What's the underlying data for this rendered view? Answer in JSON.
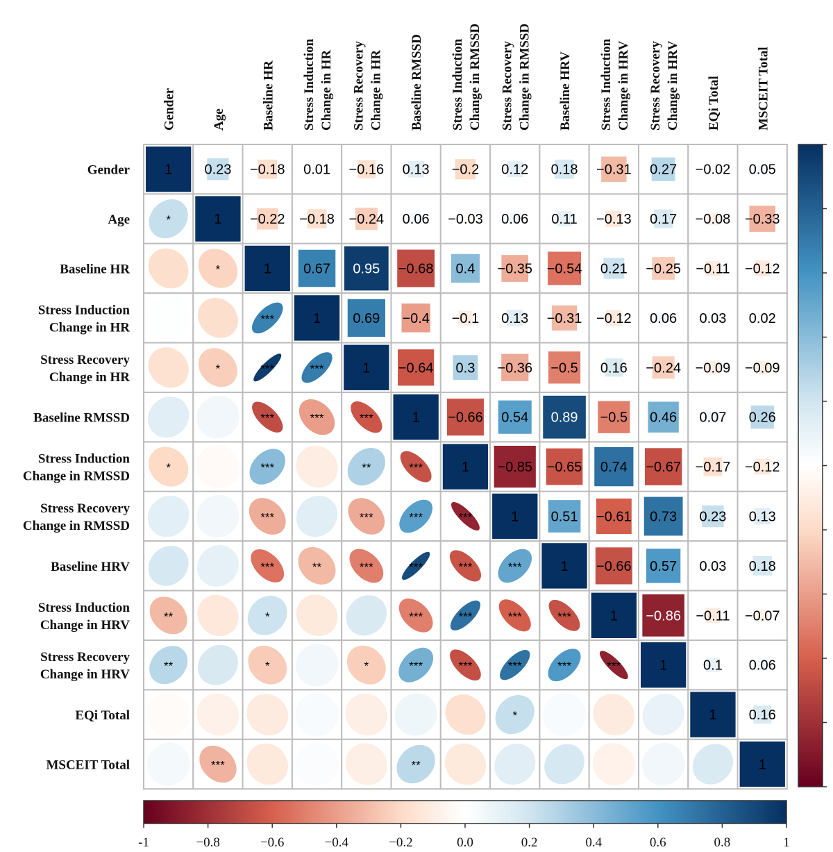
{
  "chart_data": {
    "type": "heatmap",
    "subtype": "correlation-matrix",
    "variables": [
      "Gender",
      "Age",
      "Baseline HR",
      "Stress Induction Change in HR",
      "Stress Recovery Change in HR",
      "Baseline RMSSD",
      "Stress Induction Change in RMSSD",
      "Stress Recovery Change in RMSSD",
      "Baseline HRV",
      "Stress Induction Change in HRV",
      "Stress Recovery Change in HRV",
      "EQi Total",
      "MSCEIT Total"
    ],
    "labels": [
      [
        "Gender"
      ],
      [
        "Age"
      ],
      [
        "Baseline HR"
      ],
      [
        "Stress Induction",
        "Change in HR"
      ],
      [
        "Stress Recovery",
        "Change in HR"
      ],
      [
        "Baseline RMSSD"
      ],
      [
        "Stress Induction",
        "Change in RMSSD"
      ],
      [
        "Stress Recovery",
        "Change in RMSSD"
      ],
      [
        "Baseline HRV"
      ],
      [
        "Stress Induction",
        "Change in HRV"
      ],
      [
        "Stress Recovery",
        "Change in HRV"
      ],
      [
        "EQi Total"
      ],
      [
        "MSCEIT  Total"
      ]
    ],
    "upper_labels": [
      [
        "1",
        "0.23",
        "−0.18",
        "0.01",
        "−0.16",
        "0.13",
        "−0.2",
        "0.12",
        "0.18",
        "−0.31",
        "0.27",
        "−0.02",
        "0.05"
      ],
      [
        "",
        "1",
        "−0.22",
        "−0.18",
        "−0.24",
        "0.06",
        "−0.03",
        "0.06",
        "0.11",
        "−0.13",
        "0.17",
        "−0.08",
        "−0.33"
      ],
      [
        "",
        "",
        "1",
        "0.67",
        "0.95",
        "−0.68",
        "0.4",
        "−0.35",
        "−0.54",
        "0.21",
        "−0.25",
        "−0.11",
        "−0.12"
      ],
      [
        "",
        "",
        "",
        "1",
        "0.69",
        "−0.4",
        "−0.1",
        "0.13",
        "−0.31",
        "−0.12",
        "0.06",
        "0.03",
        "0.02"
      ],
      [
        "",
        "",
        "",
        "",
        "1",
        "−0.64",
        "0.3",
        "−0.36",
        "−0.5",
        "0.16",
        "−0.24",
        "−0.09",
        "−0.09"
      ],
      [
        "",
        "",
        "",
        "",
        "",
        "1",
        "−0.66",
        "0.54",
        "0.89",
        "−0.5",
        "0.46",
        "0.07",
        "0.26"
      ],
      [
        "",
        "",
        "",
        "",
        "",
        "",
        "1",
        "−0.85",
        "−0.65",
        "0.74",
        "−0.67",
        "−0.17",
        "−0.12"
      ],
      [
        "",
        "",
        "",
        "",
        "",
        "",
        "",
        "1",
        "0.51",
        "−0.61",
        "0.73",
        "0.23",
        "0.13"
      ],
      [
        "",
        "",
        "",
        "",
        "",
        "",
        "",
        "",
        "1",
        "−0.66",
        "0.57",
        "0.03",
        "0.18"
      ],
      [
        "",
        "",
        "",
        "",
        "",
        "",
        "",
        "",
        "",
        "1",
        "−0.86",
        "−0.11",
        "−0.07"
      ],
      [
        "",
        "",
        "",
        "",
        "",
        "",
        "",
        "",
        "",
        "",
        "1",
        "0.1",
        "0.06"
      ],
      [
        "",
        "",
        "",
        "",
        "",
        "",
        "",
        "",
        "",
        "",
        "",
        "1",
        "0.16"
      ],
      [
        "",
        "",
        "",
        "",
        "",
        "",
        "",
        "",
        "",
        "",
        "",
        "",
        "1"
      ]
    ],
    "significance": [
      [
        "",
        "",
        "",
        "",
        "",
        "",
        "",
        "",
        "",
        "",
        "",
        "",
        ""
      ],
      [
        "*",
        "",
        "",
        "",
        "",
        "",
        "",
        "",
        "",
        "",
        "",
        "",
        ""
      ],
      [
        "",
        "*",
        "",
        "",
        "",
        "",
        "",
        "",
        "",
        "",
        "",
        "",
        ""
      ],
      [
        "",
        "",
        "***",
        "",
        "",
        "",
        "",
        "",
        "",
        "",
        "",
        "",
        ""
      ],
      [
        "",
        "*",
        "***",
        "***",
        "",
        "",
        "",
        "",
        "",
        "",
        "",
        "",
        ""
      ],
      [
        "",
        "",
        "***",
        "***",
        "***",
        "",
        "",
        "",
        "",
        "",
        "",
        "",
        ""
      ],
      [
        "*",
        "",
        "***",
        "",
        "**",
        "***",
        "",
        "",
        "",
        "",
        "",
        "",
        ""
      ],
      [
        "",
        "",
        "***",
        "",
        "***",
        "***",
        "***",
        "",
        "",
        "",
        "",
        "",
        ""
      ],
      [
        "",
        "",
        "***",
        "**",
        "***",
        "***",
        "***",
        "***",
        "",
        "",
        "",
        "",
        ""
      ],
      [
        "**",
        "",
        "*",
        "",
        "",
        "***",
        "***",
        "***",
        "***",
        "",
        "",
        "",
        ""
      ],
      [
        "**",
        "",
        "*",
        "",
        "*",
        "***",
        "***",
        "***",
        "***",
        "***",
        "",
        "",
        ""
      ],
      [
        "",
        "",
        "",
        "",
        "",
        "",
        "",
        "*",
        "",
        "",
        "",
        "",
        ""
      ],
      [
        "",
        "***",
        "",
        "",
        "",
        "**",
        "",
        "",
        "",
        "",
        "",
        "",
        ""
      ]
    ],
    "legend_colorbar": {
      "range": [
        -1,
        1
      ],
      "ticks": [
        "-1",
        "−0.8",
        "−0.6",
        "−0.4",
        "−0.2",
        "0.0",
        "0.2",
        "0.4",
        "0.6",
        "0.8",
        "1"
      ]
    },
    "colors": {
      "neg_end": "#67001f",
      "neg_mid": "#d6604d",
      "neg_light": "#fddbc7",
      "zero": "#ffffff",
      "pos_light": "#d1e5f0",
      "pos_mid": "#4393c3",
      "pos_end": "#053061",
      "grid": "#bdbdbd"
    }
  }
}
